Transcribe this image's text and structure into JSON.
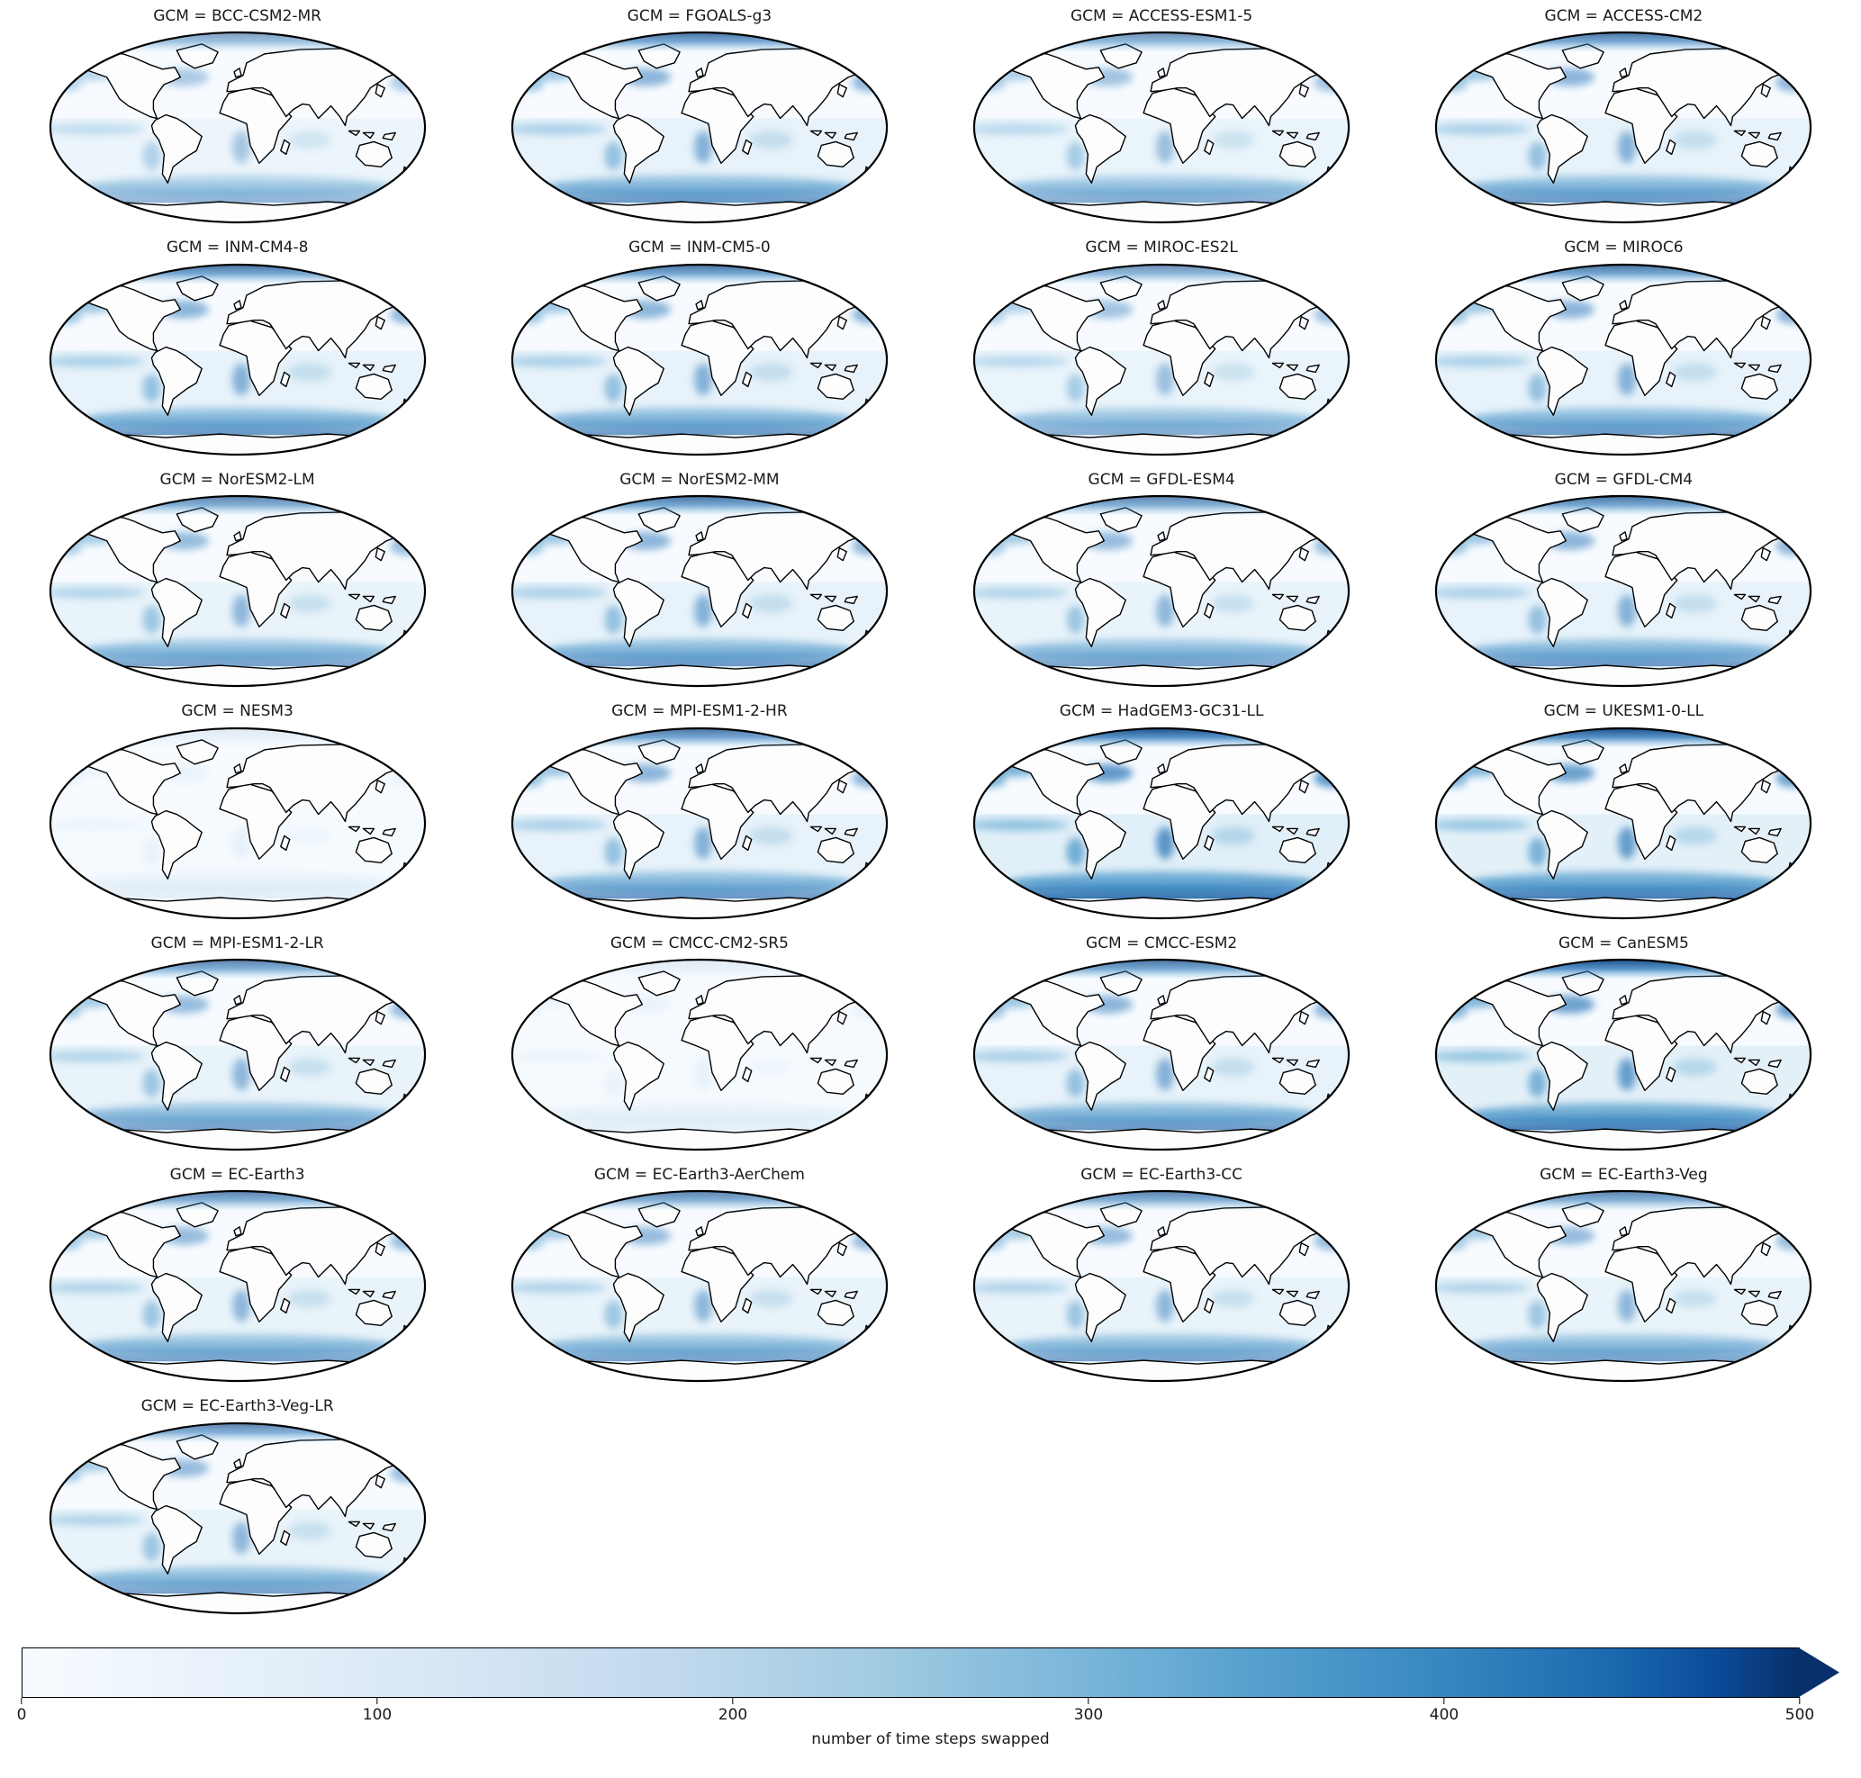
{
  "chart_data": {
    "type": "heatmap",
    "subtype": "faceted-world-map-grid",
    "projection": "Robinson",
    "facet_variable": "GCM",
    "grid_columns": 4,
    "facets": [
      {
        "label": "GCM = BCC-CSM2-MR",
        "gcm": "BCC-CSM2-MR",
        "relative_intensity": 0.35
      },
      {
        "label": "GCM = FGOALS-g3",
        "gcm": "FGOALS-g3",
        "relative_intensity": 0.5
      },
      {
        "label": "GCM = ACCESS-ESM1-5",
        "gcm": "ACCESS-ESM1-5",
        "relative_intensity": 0.4
      },
      {
        "label": "GCM = ACCESS-CM2",
        "gcm": "ACCESS-CM2",
        "relative_intensity": 0.5
      },
      {
        "label": "GCM = INM-CM4-8",
        "gcm": "INM-CM4-8",
        "relative_intensity": 0.5
      },
      {
        "label": "GCM = INM-CM5-0",
        "gcm": "INM-CM5-0",
        "relative_intensity": 0.5
      },
      {
        "label": "GCM = MIROC-ES2L",
        "gcm": "MIROC-ES2L",
        "relative_intensity": 0.4
      },
      {
        "label": "GCM = MIROC6",
        "gcm": "MIROC6",
        "relative_intensity": 0.5
      },
      {
        "label": "GCM = NorESM2-LM",
        "gcm": "NorESM2-LM",
        "relative_intensity": 0.45
      },
      {
        "label": "GCM = NorESM2-MM",
        "gcm": "NorESM2-MM",
        "relative_intensity": 0.5
      },
      {
        "label": "GCM = GFDL-ESM4",
        "gcm": "GFDL-ESM4",
        "relative_intensity": 0.45
      },
      {
        "label": "GCM = GFDL-CM4",
        "gcm": "GFDL-CM4",
        "relative_intensity": 0.5
      },
      {
        "label": "GCM = NESM3",
        "gcm": "NESM3",
        "relative_intensity": 0.06
      },
      {
        "label": "GCM = MPI-ESM1-2-HR",
        "gcm": "MPI-ESM1-2-HR",
        "relative_intensity": 0.5
      },
      {
        "label": "GCM = HadGEM3-GC31-LL",
        "gcm": "HadGEM3-GC31-LL",
        "relative_intensity": 0.7
      },
      {
        "label": "GCM = UKESM1-0-LL",
        "gcm": "UKESM1-0-LL",
        "relative_intensity": 0.65
      },
      {
        "label": "GCM = MPI-ESM1-2-LR",
        "gcm": "MPI-ESM1-2-LR",
        "relative_intensity": 0.45
      },
      {
        "label": "GCM = CMCC-CM2-SR5",
        "gcm": "CMCC-CM2-SR5",
        "relative_intensity": 0.06
      },
      {
        "label": "GCM = CMCC-ESM2",
        "gcm": "CMCC-ESM2",
        "relative_intensity": 0.5
      },
      {
        "label": "GCM = CanESM5",
        "gcm": "CanESM5",
        "relative_intensity": 0.65
      },
      {
        "label": "GCM = EC-Earth3",
        "gcm": "EC-Earth3",
        "relative_intensity": 0.45
      },
      {
        "label": "GCM = EC-Earth3-AerChem",
        "gcm": "EC-Earth3-AerChem",
        "relative_intensity": 0.45
      },
      {
        "label": "GCM = EC-Earth3-CC",
        "gcm": "EC-Earth3-CC",
        "relative_intensity": 0.45
      },
      {
        "label": "GCM = EC-Earth3-Veg",
        "gcm": "EC-Earth3-Veg",
        "relative_intensity": 0.45
      },
      {
        "label": "GCM = EC-Earth3-Veg-LR",
        "gcm": "EC-Earth3-Veg-LR",
        "relative_intensity": 0.45
      }
    ],
    "colorbar": {
      "label": "number of time steps swapped",
      "min": 0,
      "max": 500,
      "ticks": [
        "0",
        "100",
        "200",
        "300",
        "400",
        "500"
      ],
      "colormap": "Blues",
      "extend": "max",
      "color_min": "#f7fbff",
      "color_max": "#08306b"
    }
  }
}
